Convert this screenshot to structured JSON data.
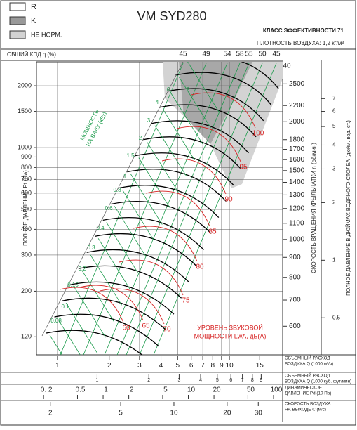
{
  "chart_data": {
    "type": "nomogram",
    "title": "VM SYD280",
    "legend": [
      "R",
      "K",
      "НЕ НОРМ."
    ],
    "efficiency_class": "КЛАСС ЭФФЕКТИВНОСТИ 71",
    "air_density": "ПЛОТНОСТЬ ВОЗДУХА: 1,2 кг/м³",
    "efficiency_title": "ОБЩИЙ КПД η (%)",
    "efficiency_labels": [
      45,
      49,
      54,
      58,
      55,
      50,
      45,
      40
    ],
    "ylabel": "ПОЛНОЕ ДАВЛЕНИЕ Pt (Па)",
    "y_log": true,
    "ylim": [
      98,
      2615
    ],
    "yticks": [
      120,
      200,
      300,
      400,
      500,
      600,
      700,
      800,
      900,
      1000,
      1500,
      2000
    ],
    "speed_axis": {
      "label": "СКОРОСТЬ ВРАЩЕНИЯ КРЫЛЬЧАТКИ n (об/мин)",
      "lim": [
        507,
        2846
      ],
      "ticks": [
        2500,
        2200,
        2000,
        1800,
        1700,
        1600,
        1500,
        1400,
        1300,
        1200,
        1100,
        1000,
        900,
        800,
        700,
        600
      ]
    },
    "inch_axis": {
      "label": "ПОЛНОЕ ДАВЛЕНИЕ В ДЮЙМАХ ВОДЯНОГО СТОЛБА (дюйм. вод. ст.)",
      "lim": [
        0.32,
        10.9
      ],
      "ticks": [
        7,
        6,
        5,
        4,
        3,
        2,
        1,
        0.5
      ]
    },
    "power_title": [
      "МОЩНОСТЬ",
      "НА ВАЛУ (кВт)"
    ],
    "power_labels": [
      0.08,
      0.1,
      0.15,
      0.2,
      0.3,
      0.4,
      0.6,
      0.8,
      1,
      1.5,
      2,
      3,
      4,
      6,
      8
    ],
    "sound_title": [
      "УРОВЕНЬ ЗВУКОВОЙ",
      "МОЩНОСТИ LwA, дБ(A)"
    ],
    "sound_labels": [
      60,
      65,
      70,
      75,
      80,
      85,
      90,
      95,
      100
    ],
    "x_scales": [
      {
        "label": [
          "ОБЪЕМНЫЙ РАСХОД",
          "ВОЗДУХА Q (1000 м³/ч)"
        ],
        "lim": [
          0.755,
          20.4
        ],
        "ticks": [
          1,
          2,
          3,
          4,
          5,
          6,
          7,
          8,
          9,
          10,
          15
        ]
      },
      {
        "label": [
          "ОБЪЕМНЫЙ РАСХОД",
          "ВОЗДУХА Q (1000 куб. фут/мин)"
        ],
        "lim": [
          0.444,
          12.0
        ],
        "ticks": [
          1,
          2,
          3,
          4,
          5,
          6,
          7,
          8,
          9
        ]
      },
      {
        "label": [
          "ДИНАМИЧЕСКОЕ",
          "ДАВЛЕНИЕ Pd (10 Па)"
        ],
        "lim": [
          0.165,
          128
        ],
        "ticks": [
          {
            "value": 0.2,
            "label": "0. 2"
          },
          0.5,
          1,
          2,
          5,
          10,
          20,
          50,
          100
        ]
      },
      {
        "label": [
          "СКОРОСТЬ ВОЗДУХА",
          "НА ВЫХОДЕ C (м/с)"
        ],
        "lim": [
          1.67,
          41.2
        ],
        "ticks": [
          2,
          5,
          10,
          20,
          30
        ]
      }
    ]
  }
}
